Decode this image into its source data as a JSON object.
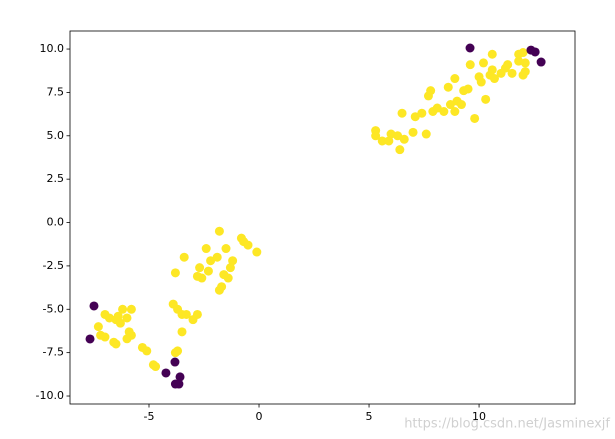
{
  "chart_data": {
    "type": "scatter",
    "xlim": [
      -8.59,
      14.36
    ],
    "ylim": [
      -10.46,
      11.04
    ],
    "xticks": [
      -5,
      0,
      5,
      10
    ],
    "yticks": [
      {
        "value": -10,
        "label": "-10.0"
      },
      -7.5,
      {
        "value": -5,
        "label": "-5.0"
      },
      -2.5,
      {
        "value": 0,
        "label": "0.0"
      },
      2.5,
      {
        "value": 5,
        "label": "5.0"
      },
      7.5,
      {
        "value": 10,
        "label": "10.0"
      }
    ],
    "grid": false,
    "series": [
      {
        "color": "#fde725",
        "x": [
          -7.3,
          -7.0,
          -6.8,
          -6.5,
          -6.2,
          -6.4,
          -6.0,
          -5.8,
          -5.9,
          -6.0,
          -6.5,
          -6.6,
          -7.0,
          -7.2,
          -5.8,
          -5.3,
          -5.1,
          -4.8,
          -4.7,
          -6.3,
          -3.9,
          -3.7,
          -3.5,
          -3.3,
          -3.0,
          -2.8,
          -3.5,
          -3.8,
          -3.7,
          -3.8,
          -3.4,
          -2.7,
          -2.6,
          -2.8,
          -2.3,
          -2.2,
          -2.4,
          -1.9,
          -1.8,
          -1.5,
          -1.2,
          -1.3,
          -1.6,
          -1.7,
          -1.8,
          -0.8,
          -0.7,
          -0.5,
          -0.1,
          -1.4,
          5.3,
          5.3,
          5.6,
          5.9,
          6.0,
          6.3,
          6.4,
          6.5,
          6.6,
          7.0,
          7.1,
          7.4,
          7.6,
          7.7,
          7.8,
          7.9,
          8.1,
          8.4,
          8.6,
          8.7,
          8.9,
          8.9,
          9.0,
          9.2,
          9.3,
          9.5,
          9.6,
          9.8,
          10.0,
          10.1,
          10.3,
          10.5,
          10.6,
          10.7,
          11.0,
          11.2,
          11.3,
          11.5,
          11.8,
          11.8,
          12.0,
          12.0,
          12.1,
          12.1,
          10.2,
          10.6
        ],
        "values": [
          -6.0,
          -5.3,
          -5.5,
          -5.6,
          -5.0,
          -5.4,
          -5.5,
          -5.0,
          -6.3,
          -6.7,
          -7.0,
          -6.9,
          -6.6,
          -6.5,
          -6.5,
          -7.2,
          -7.4,
          -8.2,
          -8.3,
          -5.8,
          -4.7,
          -5.0,
          -5.3,
          -5.3,
          -5.6,
          -5.3,
          -6.3,
          -7.5,
          -7.4,
          -2.9,
          -2.0,
          -2.6,
          -3.2,
          -3.1,
          -2.8,
          -2.2,
          -1.5,
          -2.0,
          -0.5,
          -1.5,
          -2.2,
          -2.6,
          -3.0,
          -3.7,
          -3.9,
          -0.9,
          -1.1,
          -1.3,
          -1.7,
          -3.2,
          5.3,
          5.0,
          4.7,
          4.7,
          5.1,
          5.0,
          4.2,
          6.3,
          4.8,
          5.2,
          6.1,
          6.3,
          5.1,
          7.3,
          7.6,
          6.4,
          6.6,
          6.4,
          7.8,
          6.8,
          8.3,
          6.4,
          7.0,
          6.8,
          7.6,
          7.7,
          9.1,
          6.0,
          8.4,
          8.1,
          7.1,
          8.5,
          8.8,
          8.3,
          8.6,
          8.9,
          9.1,
          8.6,
          9.3,
          9.7,
          8.5,
          9.8,
          8.7,
          9.2,
          9.2,
          9.7
        ]
      },
      {
        "color": "#440154",
        "x": [
          -7.5,
          -7.68,
          -3.82,
          -4.23,
          -3.59,
          -3.64,
          -3.8,
          9.59,
          12.36,
          12.55,
          12.82
        ],
        "values": [
          -4.81,
          -6.71,
          -8.04,
          -8.67,
          -8.9,
          -9.31,
          -9.31,
          10.06,
          9.94,
          9.83,
          9.25
        ]
      }
    ],
    "watermark": "https://blog.csdn.net/Jasminexjf"
  }
}
